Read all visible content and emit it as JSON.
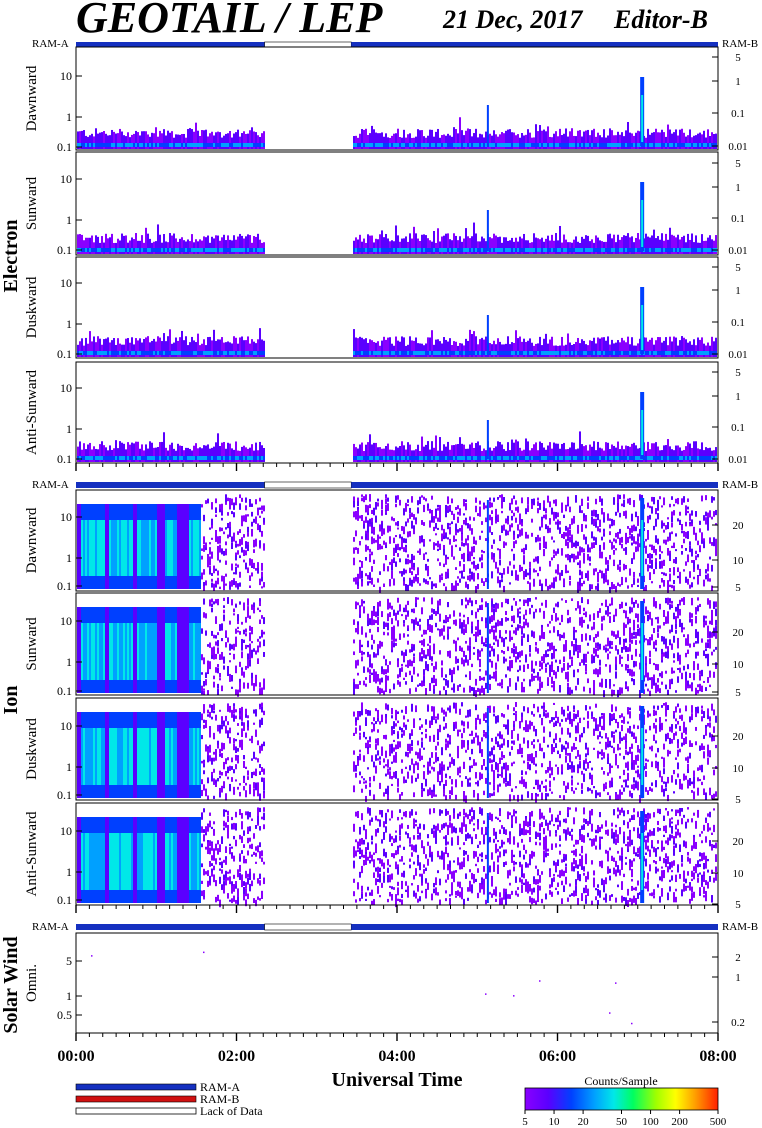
{
  "header": {
    "title": "GEOTAIL / LEP",
    "date": "21 Dec, 2017",
    "editor": "Editor-B"
  },
  "groups": {
    "electron": "Electron",
    "ion": "Ion",
    "solar_wind": "Solar Wind"
  },
  "ram_labels": {
    "a": "RAM-A",
    "b": "RAM-B"
  },
  "legend": {
    "ram_a": "RAM-A",
    "ram_b": "RAM-B",
    "lack": "Lack of Data",
    "colorbar_title": "Counts/Sample",
    "colorbar_ticks": [
      "5",
      "10",
      "20",
      "50",
      "100",
      "200",
      "500"
    ]
  },
  "colors": {
    "ram_a": "#1530c0",
    "ram_b": "#d01010",
    "lack": "#ffffff",
    "colormap": [
      "#8a00ff",
      "#5a00ff",
      "#0040ff",
      "#00a0ff",
      "#00e8e8",
      "#00ff60",
      "#a0ff00",
      "#ffff00",
      "#ffa000",
      "#ff2000"
    ]
  },
  "chart_data": {
    "type": "heatmap",
    "xlabel": "Universal Time",
    "x_ticks": [
      "00:00",
      "02:00",
      "04:00",
      "06:00",
      "08:00"
    ],
    "x_range_hours": [
      0,
      8
    ],
    "data_gap_hours": [
      2.35,
      3.43
    ],
    "panels": [
      {
        "group": "electron",
        "ylabel": "Dawnward",
        "left_ticks": [
          "10",
          "1",
          "0.1"
        ],
        "right_ticks": [
          "5",
          "1",
          "0.1",
          "0.01"
        ]
      },
      {
        "group": "electron",
        "ylabel": "Sunward",
        "left_ticks": [
          "10",
          "1",
          "0.1"
        ],
        "right_ticks": [
          "5",
          "1",
          "0.1",
          "0.01"
        ]
      },
      {
        "group": "electron",
        "ylabel": "Duskward",
        "left_ticks": [
          "10",
          "1",
          "0.1"
        ],
        "right_ticks": [
          "5",
          "1",
          "0.1",
          "0.01"
        ]
      },
      {
        "group": "electron",
        "ylabel": "Anti-Sunward",
        "left_ticks": [
          "10",
          "1",
          "0.1"
        ],
        "right_ticks": [
          "5",
          "1",
          "0.1",
          "0.01"
        ]
      },
      {
        "group": "ion",
        "ylabel": "Dawnward",
        "left_ticks": [
          "10",
          "1",
          "0.1"
        ],
        "right_ticks": [
          "20",
          "10",
          "5"
        ]
      },
      {
        "group": "ion",
        "ylabel": "Sunward",
        "left_ticks": [
          "10",
          "1",
          "0.1"
        ],
        "right_ticks": [
          "20",
          "10",
          "5"
        ]
      },
      {
        "group": "ion",
        "ylabel": "Duskward",
        "left_ticks": [
          "10",
          "1",
          "0.1"
        ],
        "right_ticks": [
          "20",
          "10",
          "5"
        ]
      },
      {
        "group": "ion",
        "ylabel": "Anti-Sunward",
        "left_ticks": [
          "10",
          "1",
          "0.1"
        ],
        "right_ticks": [
          "20",
          "10",
          "5"
        ]
      },
      {
        "group": "solar_wind",
        "ylabel": "Omni.",
        "left_ticks": [
          "5",
          "1",
          "0.5"
        ],
        "right_ticks": [
          "2",
          "1",
          "0.2"
        ]
      }
    ],
    "colorbar": {
      "label": "Counts/Sample",
      "range": [
        5,
        500
      ],
      "scale": "log"
    }
  }
}
